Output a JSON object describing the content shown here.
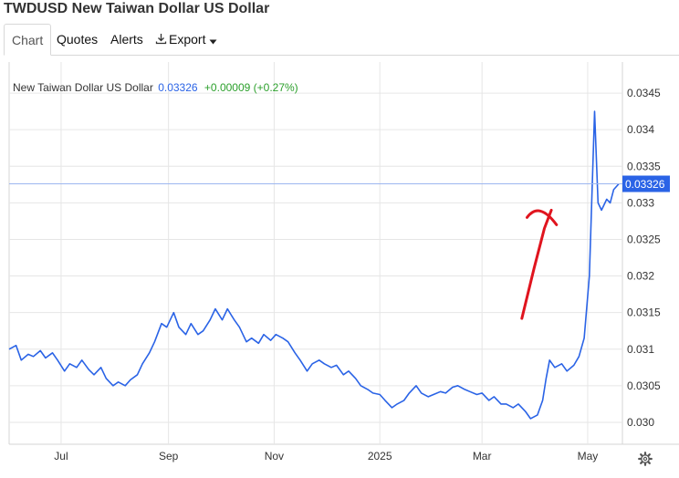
{
  "page": {
    "title": "TWDUSD New Taiwan Dollar US Dollar"
  },
  "tabs": [
    {
      "label": "Chart",
      "active": true
    },
    {
      "label": "Quotes",
      "active": false
    },
    {
      "label": "Alerts",
      "active": false
    },
    {
      "label": "Export",
      "active": false,
      "icon": "download-icon",
      "dropdown": true
    }
  ],
  "legend": {
    "name": "New Taiwan Dollar US Dollar",
    "price": "0.03326",
    "change": "+0.00009 (+0.27%)"
  },
  "colors": {
    "line": "#2a63e6",
    "annotation": "#e0141e",
    "change": "#2ca02c",
    "grid": "#e6e6e6"
  },
  "chart_data": {
    "type": "line",
    "title": "New Taiwan Dollar US Dollar",
    "ylim": [
      0.0297,
      0.0349
    ],
    "y_ticks": [
      0.03,
      0.0305,
      0.031,
      0.0315,
      0.032,
      0.0325,
      0.033,
      0.0335,
      0.034,
      0.0345
    ],
    "y_tick_labels": [
      "0.030",
      "0.0305",
      "0.031",
      "0.0315",
      "0.032",
      "0.0325",
      "0.033",
      "0.0335",
      "0.034",
      "0.0345"
    ],
    "x_range": [
      "2024-06-01",
      "2025-05-20"
    ],
    "x_ticks": [
      "2024-07-01",
      "2024-09-01",
      "2024-11-01",
      "2025-01-01",
      "2025-03-01",
      "2025-05-01"
    ],
    "x_tick_labels": [
      "Jul",
      "Sep",
      "Nov",
      "2025",
      "Mar",
      "May"
    ],
    "last_value_label": "0.03326",
    "last_value": 0.03326,
    "grid": true,
    "series": [
      {
        "values": [
          [
            "2024-06-01",
            0.031
          ],
          [
            "2024-06-05",
            0.03105
          ],
          [
            "2024-06-08",
            0.03085
          ],
          [
            "2024-06-12",
            0.03093
          ],
          [
            "2024-06-15",
            0.0309
          ],
          [
            "2024-06-19",
            0.03098
          ],
          [
            "2024-06-22",
            0.03088
          ],
          [
            "2024-06-26",
            0.03095
          ],
          [
            "2024-06-29",
            0.03085
          ],
          [
            "2024-07-03",
            0.0307
          ],
          [
            "2024-07-06",
            0.0308
          ],
          [
            "2024-07-10",
            0.03075
          ],
          [
            "2024-07-13",
            0.03085
          ],
          [
            "2024-07-17",
            0.03072
          ],
          [
            "2024-07-20",
            0.03065
          ],
          [
            "2024-07-24",
            0.03075
          ],
          [
            "2024-07-27",
            0.0306
          ],
          [
            "2024-07-31",
            0.0305
          ],
          [
            "2024-08-03",
            0.03055
          ],
          [
            "2024-08-07",
            0.0305
          ],
          [
            "2024-08-10",
            0.03058
          ],
          [
            "2024-08-14",
            0.03065
          ],
          [
            "2024-08-17",
            0.0308
          ],
          [
            "2024-08-21",
            0.03095
          ],
          [
            "2024-08-24",
            0.0311
          ],
          [
            "2024-08-28",
            0.03135
          ],
          [
            "2024-08-31",
            0.0313
          ],
          [
            "2024-09-04",
            0.0315
          ],
          [
            "2024-09-07",
            0.0313
          ],
          [
            "2024-09-11",
            0.0312
          ],
          [
            "2024-09-14",
            0.03135
          ],
          [
            "2024-09-18",
            0.0312
          ],
          [
            "2024-09-21",
            0.03125
          ],
          [
            "2024-09-25",
            0.0314
          ],
          [
            "2024-09-28",
            0.03155
          ],
          [
            "2024-10-02",
            0.0314
          ],
          [
            "2024-10-05",
            0.03155
          ],
          [
            "2024-10-09",
            0.0314
          ],
          [
            "2024-10-12",
            0.0313
          ],
          [
            "2024-10-16",
            0.0311
          ],
          [
            "2024-10-19",
            0.03115
          ],
          [
            "2024-10-23",
            0.03108
          ],
          [
            "2024-10-26",
            0.0312
          ],
          [
            "2024-10-30",
            0.03112
          ],
          [
            "2024-11-02",
            0.0312
          ],
          [
            "2024-11-06",
            0.03115
          ],
          [
            "2024-11-09",
            0.0311
          ],
          [
            "2024-11-13",
            0.03095
          ],
          [
            "2024-11-16",
            0.03085
          ],
          [
            "2024-11-20",
            0.0307
          ],
          [
            "2024-11-23",
            0.0308
          ],
          [
            "2024-11-27",
            0.03085
          ],
          [
            "2024-11-30",
            0.0308
          ],
          [
            "2024-12-04",
            0.03075
          ],
          [
            "2024-12-07",
            0.03078
          ],
          [
            "2024-12-11",
            0.03065
          ],
          [
            "2024-12-14",
            0.0307
          ],
          [
            "2024-12-18",
            0.0306
          ],
          [
            "2024-12-21",
            0.0305
          ],
          [
            "2024-12-25",
            0.03045
          ],
          [
            "2024-12-28",
            0.0304
          ],
          [
            "2025-01-01",
            0.03038
          ],
          [
            "2025-01-04",
            0.0303
          ],
          [
            "2025-01-08",
            0.0302
          ],
          [
            "2025-01-11",
            0.03025
          ],
          [
            "2025-01-15",
            0.0303
          ],
          [
            "2025-01-18",
            0.0304
          ],
          [
            "2025-01-22",
            0.0305
          ],
          [
            "2025-01-25",
            0.0304
          ],
          [
            "2025-01-29",
            0.03035
          ],
          [
            "2025-02-01",
            0.03038
          ],
          [
            "2025-02-05",
            0.03042
          ],
          [
            "2025-02-08",
            0.0304
          ],
          [
            "2025-02-12",
            0.03048
          ],
          [
            "2025-02-15",
            0.0305
          ],
          [
            "2025-02-19",
            0.03045
          ],
          [
            "2025-02-22",
            0.03042
          ],
          [
            "2025-02-26",
            0.03038
          ],
          [
            "2025-03-01",
            0.0304
          ],
          [
            "2025-03-05",
            0.0303
          ],
          [
            "2025-03-08",
            0.03035
          ],
          [
            "2025-03-12",
            0.03025
          ],
          [
            "2025-03-15",
            0.03025
          ],
          [
            "2025-03-19",
            0.0302
          ],
          [
            "2025-03-22",
            0.03025
          ],
          [
            "2025-03-26",
            0.03015
          ],
          [
            "2025-03-29",
            0.03005
          ],
          [
            "2025-04-02",
            0.0301
          ],
          [
            "2025-04-05",
            0.0303
          ],
          [
            "2025-04-07",
            0.0306
          ],
          [
            "2025-04-09",
            0.03085
          ],
          [
            "2025-04-12",
            0.03075
          ],
          [
            "2025-04-16",
            0.0308
          ],
          [
            "2025-04-19",
            0.0307
          ],
          [
            "2025-04-23",
            0.03078
          ],
          [
            "2025-04-26",
            0.0309
          ],
          [
            "2025-04-29",
            0.03115
          ],
          [
            "2025-05-02",
            0.032
          ],
          [
            "2025-05-05",
            0.03425
          ],
          [
            "2025-05-07",
            0.033
          ],
          [
            "2025-05-09",
            0.0329
          ],
          [
            "2025-05-12",
            0.03305
          ],
          [
            "2025-05-14",
            0.033
          ],
          [
            "2025-05-16",
            0.03318
          ],
          [
            "2025-05-19",
            0.03326
          ]
        ]
      }
    ],
    "annotation": {
      "type": "hand-drawn-arrow",
      "points": [
        [
          "2025-03-24",
          0.03142
        ],
        [
          "2025-03-31",
          0.0321
        ],
        [
          "2025-04-06",
          0.03265
        ],
        [
          "2025-04-10",
          0.0329
        ]
      ],
      "head": [
        [
          "2025-03-27",
          0.0328
        ],
        [
          "2025-04-03",
          0.03295
        ],
        [
          "2025-04-13",
          0.0327
        ]
      ]
    }
  }
}
